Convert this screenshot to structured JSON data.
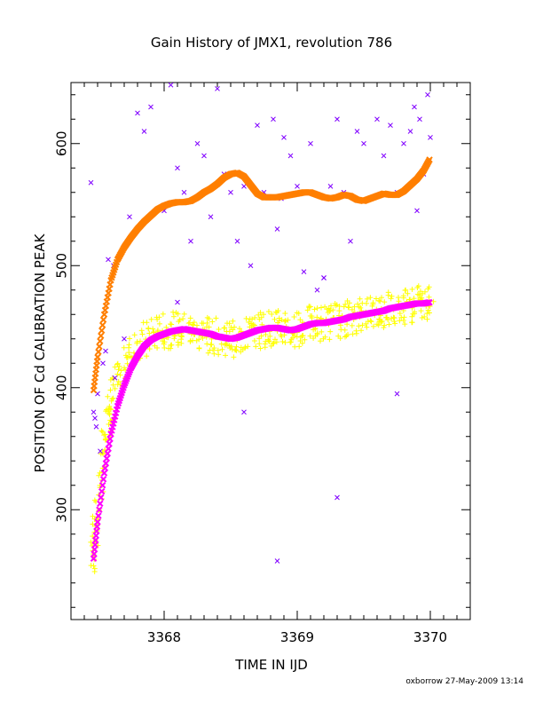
{
  "chart_data": {
    "type": "scatter",
    "title": "Gain History of JMX1, revolution 786",
    "xlabel": "TIME IN IJD",
    "ylabel": "POSITION OF Cd CALIBRATION PEAK",
    "xlim": [
      3367.3,
      3370.3
    ],
    "ylim": [
      210,
      650
    ],
    "x_ticks": [
      3368,
      3369,
      3370
    ],
    "x_tick_labels": [
      "3368",
      "3369",
      "3370"
    ],
    "y_ticks": [
      300,
      400,
      500,
      600
    ],
    "y_tick_labels": [
      "300",
      "400",
      "500",
      "600"
    ],
    "x_minor_step": 0.1,
    "y_minor_step": 20,
    "grid": false,
    "credit": "oxborrow 27-May-2009 13:14",
    "colors": {
      "high_raw": "#8000ff",
      "high_fit": "#ff7f00",
      "low_raw": "#ffff00",
      "low_fit": "#ff00ff",
      "axis": "#000000"
    },
    "series": [
      {
        "marker": "x",
        "color": "#8000ff",
        "x_range": [
          3367.45,
          3370.0
        ],
        "x": [
          3367.45,
          3367.47,
          3367.48,
          3367.49,
          3367.5,
          3367.52,
          3367.54,
          3367.56,
          3367.58,
          3367.62,
          3367.63,
          3367.66,
          3367.7,
          3367.74,
          3367.8,
          3367.85,
          3367.9,
          3368.0,
          3368.05,
          3368.1,
          3368.15,
          3368.2,
          3368.25,
          3368.3,
          3368.35,
          3368.4,
          3368.45,
          3368.5,
          3368.55,
          3368.6,
          3368.65,
          3368.7,
          3368.75,
          3368.82,
          3368.85,
          3368.88,
          3368.9,
          3368.95,
          3369.0,
          3369.05,
          3369.1,
          3369.15,
          3369.2,
          3369.25,
          3369.3,
          3369.35,
          3369.4,
          3369.45,
          3369.5,
          3369.55,
          3369.6,
          3369.65,
          3369.7,
          3369.75,
          3369.8,
          3369.85,
          3369.88,
          3369.9,
          3369.92,
          3369.95,
          3369.98,
          3370.0,
          3368.6,
          3369.3,
          3369.75,
          3369.2,
          3368.85,
          3368.1
        ],
        "y": [
          568,
          380,
          375,
          368,
          395,
          348,
          420,
          430,
          505,
          500,
          408,
          390,
          440,
          540,
          625,
          610,
          630,
          545,
          648,
          580,
          560,
          520,
          600,
          590,
          540,
          645,
          575,
          560,
          520,
          565,
          500,
          615,
          560,
          620,
          258,
          555,
          605,
          590,
          565,
          495,
          600,
          480,
          490,
          565,
          620,
          560,
          520,
          610,
          600,
          555,
          620,
          590,
          615,
          560,
          600,
          610,
          630,
          545,
          620,
          575,
          640,
          605,
          380,
          310,
          395,
          490,
          530,
          470
        ]
      },
      {
        "marker": "+",
        "color": "#ffff00",
        "x_range": [
          3367.47,
          3370.0
        ],
        "x": [
          3367.47,
          3367.48,
          3367.5,
          3367.52,
          3367.55,
          3367.58,
          3367.6,
          3367.62,
          3367.65,
          3367.7,
          3367.75,
          3367.8,
          3367.85,
          3367.9,
          3367.95,
          3368.0,
          3368.05,
          3368.1,
          3368.15,
          3368.2,
          3368.25,
          3368.3,
          3368.35,
          3368.4,
          3368.45,
          3368.5,
          3368.55,
          3368.6,
          3368.65,
          3368.7,
          3368.75,
          3368.8,
          3368.85,
          3368.9,
          3368.95,
          3369.0,
          3369.05,
          3369.1,
          3369.15,
          3369.2,
          3369.25,
          3369.3,
          3369.35,
          3369.4,
          3369.45,
          3369.5,
          3369.55,
          3369.6,
          3369.65,
          3369.7,
          3369.75,
          3369.8,
          3369.85,
          3369.9,
          3369.95,
          3370.0
        ],
        "y": [
          262,
          280,
          295,
          320,
          350,
          372,
          385,
          395,
          405,
          418,
          428,
          436,
          440,
          442,
          445,
          446,
          447,
          448,
          447,
          446,
          445,
          444,
          443,
          442,
          441,
          440,
          441,
          443,
          445,
          447,
          448,
          449,
          449,
          448,
          447,
          448,
          450,
          452,
          453,
          453,
          454,
          455,
          456,
          458,
          459,
          460,
          462,
          463,
          464,
          465,
          466,
          467,
          468,
          469,
          469,
          470
        ]
      },
      {
        "name": "",
        "marker": "line",
        "color": "#ff7f00",
        "x": [
          3367.47,
          3367.5,
          3367.55,
          3367.6,
          3367.65,
          3367.7,
          3367.75,
          3367.8,
          3367.85,
          3367.9,
          3367.95,
          3368.0,
          3368.05,
          3368.1,
          3368.15,
          3368.2,
          3368.25,
          3368.3,
          3368.35,
          3368.4,
          3368.45,
          3368.5,
          3368.55,
          3368.6,
          3368.65,
          3368.7,
          3368.75,
          3368.8,
          3368.85,
          3368.9,
          3368.95,
          3369.0,
          3369.05,
          3369.1,
          3369.15,
          3369.2,
          3369.25,
          3369.3,
          3369.35,
          3369.4,
          3369.45,
          3369.5,
          3369.55,
          3369.6,
          3369.65,
          3369.7,
          3369.75,
          3369.8,
          3369.85,
          3369.9,
          3369.95,
          3370.0
        ],
        "y": [
          398,
          425,
          460,
          488,
          505,
          515,
          523,
          530,
          536,
          541,
          546,
          549,
          551,
          552,
          552,
          553,
          556,
          560,
          563,
          567,
          572,
          575,
          576,
          573,
          566,
          559,
          556,
          556,
          556,
          557,
          558,
          559,
          560,
          560,
          558,
          556,
          555,
          556,
          558,
          557,
          554,
          553,
          555,
          557,
          559,
          558,
          558,
          561,
          566,
          571,
          578,
          588
        ]
      },
      {
        "marker": "line",
        "color": "#ff00ff",
        "x": [
          3367.47,
          3367.5,
          3367.55,
          3367.6,
          3367.65,
          3367.7,
          3367.75,
          3367.8,
          3367.85,
          3367.9,
          3367.95,
          3368.0,
          3368.05,
          3368.1,
          3368.15,
          3368.2,
          3368.25,
          3368.3,
          3368.35,
          3368.4,
          3368.45,
          3368.5,
          3368.55,
          3368.6,
          3368.65,
          3368.7,
          3368.75,
          3368.8,
          3368.85,
          3368.9,
          3368.95,
          3369.0,
          3369.05,
          3369.1,
          3369.15,
          3369.2,
          3369.25,
          3369.3,
          3369.35,
          3369.4,
          3369.45,
          3369.5,
          3369.55,
          3369.6,
          3369.65,
          3369.7,
          3369.75,
          3369.8,
          3369.85,
          3369.9,
          3369.95,
          3370.0
        ],
        "y": [
          260,
          290,
          330,
          362,
          385,
          402,
          416,
          426,
          434,
          439,
          442,
          444,
          446,
          447,
          448,
          447,
          446,
          445,
          444,
          442,
          441,
          440,
          441,
          443,
          445,
          447,
          448,
          449,
          449,
          448,
          447,
          448,
          450,
          452,
          453,
          453,
          454,
          455,
          456,
          458,
          459,
          460,
          461,
          462,
          463,
          465,
          466,
          467,
          468,
          469,
          469,
          470
        ]
      }
    ]
  }
}
